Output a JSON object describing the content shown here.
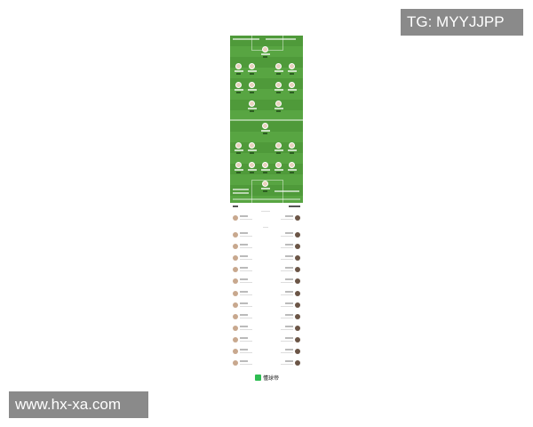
{
  "watermarks": {
    "top": "TG: MYYJJPP",
    "bottom": "www.hx-xa.com"
  },
  "pitch": {
    "colors": {
      "grass": "#4f9a3a",
      "grass_alt": "#58a542"
    },
    "home_rows": [
      1,
      4,
      4,
      2
    ],
    "away_rows": [
      1,
      4,
      5,
      1
    ]
  },
  "lineup": {
    "starters_rows": 12
  },
  "brand": {
    "name": "懂球帝",
    "color": "#2ebd52"
  }
}
